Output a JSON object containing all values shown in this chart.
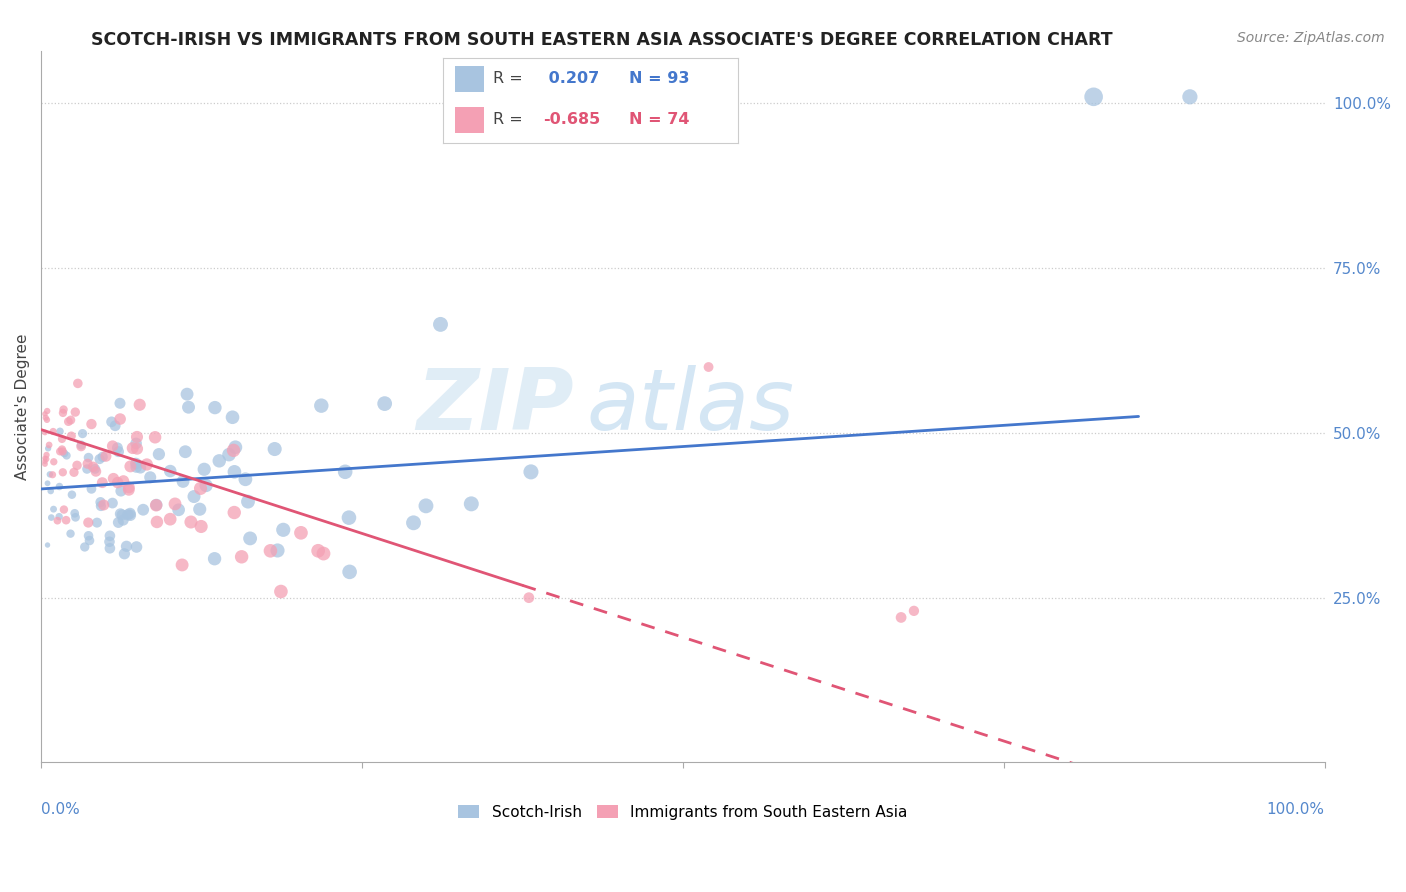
{
  "title": "SCOTCH-IRISH VS IMMIGRANTS FROM SOUTH EASTERN ASIA ASSOCIATE'S DEGREE CORRELATION CHART",
  "source": "Source: ZipAtlas.com",
  "ylabel": "Associate's Degree",
  "legend_label1": "Scotch-Irish",
  "legend_label2": "Immigrants from South Eastern Asia",
  "r1": 0.207,
  "n1": 93,
  "r2": -0.685,
  "n2": 74,
  "color1": "#a8c4e0",
  "color2": "#f4a0b4",
  "line_color1": "#4477cc",
  "line_color2": "#e05575",
  "watermark_zip": "ZIP",
  "watermark_atlas": "atlas",
  "background": "#ffffff",
  "grid_color": "#cccccc",
  "ytick_color": "#5588cc",
  "xtick_color": "#5588cc"
}
